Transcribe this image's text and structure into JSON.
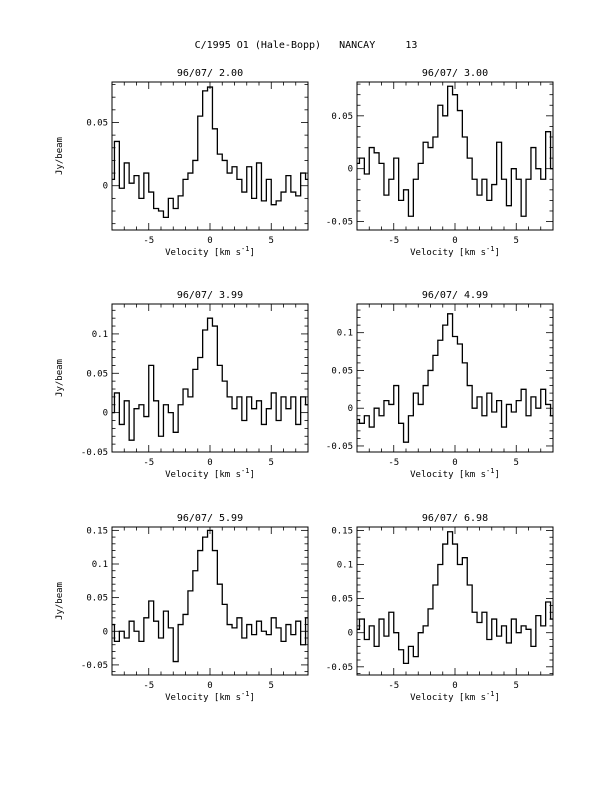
{
  "title": "C/1995 O1 (Hale-Bopp)   NANCAY     13",
  "chart_data": [
    {
      "type": "line",
      "title": "96/07/ 2.00",
      "xlabel": "Velocity [km s",
      "xlabel_sup": "-1",
      "xlabel_end": "]",
      "ylabel": "Jy/beam",
      "xlim": [
        -8,
        8
      ],
      "ylim": [
        -0.035,
        0.082
      ],
      "xticks_major": [
        -5,
        0,
        5
      ],
      "yticks_major": [
        0,
        0.05
      ],
      "ytick_labels": [
        "0",
        "0.05"
      ],
      "yticks_minor_step": 0.01,
      "x": [
        -8,
        -7.6,
        -7.2,
        -6.8,
        -6.4,
        -6,
        -5.6,
        -5.2,
        -4.8,
        -4.4,
        -4,
        -3.6,
        -3.2,
        -2.8,
        -2.4,
        -2,
        -1.6,
        -1.2,
        -0.8,
        -0.4,
        0,
        0.4,
        0.8,
        1.2,
        1.6,
        2,
        2.4,
        2.8,
        3.2,
        3.6,
        4,
        4.4,
        4.8,
        5.2,
        5.6,
        6,
        6.4,
        6.8,
        7.2,
        7.6,
        8
      ],
      "y": [
        0.005,
        0.035,
        -0.002,
        0.018,
        0.002,
        0.008,
        -0.01,
        0.01,
        -0.005,
        -0.018,
        -0.02,
        -0.025,
        -0.01,
        -0.018,
        -0.008,
        0.005,
        0.01,
        0.02,
        0.055,
        0.075,
        0.078,
        0.045,
        0.025,
        0.02,
        0.01,
        0.015,
        0.005,
        -0.005,
        0.015,
        -0.01,
        0.018,
        -0.012,
        0.005,
        -0.015,
        -0.012,
        -0.005,
        0.008,
        -0.005,
        -0.008,
        0.01,
        0.005
      ]
    },
    {
      "type": "line",
      "title": "96/07/ 3.00",
      "xlabel": "Velocity [km s",
      "xlabel_sup": "-1",
      "xlabel_end": "]",
      "ylabel": "",
      "xlim": [
        -8,
        8
      ],
      "ylim": [
        -0.058,
        0.082
      ],
      "xticks_major": [
        -5,
        0,
        5
      ],
      "yticks_major": [
        -0.05,
        0,
        0.05
      ],
      "ytick_labels": [
        "-0.05",
        "0",
        "0.05"
      ],
      "yticks_minor_step": 0.01,
      "x": [
        -8,
        -7.6,
        -7.2,
        -6.8,
        -6.4,
        -6,
        -5.6,
        -5.2,
        -4.8,
        -4.4,
        -4,
        -3.6,
        -3.2,
        -2.8,
        -2.4,
        -2,
        -1.6,
        -1.2,
        -0.8,
        -0.4,
        0,
        0.4,
        0.8,
        1.2,
        1.6,
        2,
        2.4,
        2.8,
        3.2,
        3.6,
        4,
        4.4,
        4.8,
        5.2,
        5.6,
        6,
        6.4,
        6.8,
        7.2,
        7.6,
        8
      ],
      "y": [
        0.005,
        0.01,
        -0.005,
        0.02,
        0.015,
        0.005,
        -0.025,
        -0.01,
        0.01,
        -0.03,
        -0.02,
        -0.045,
        -0.01,
        0.005,
        0.025,
        0.02,
        0.03,
        0.06,
        0.05,
        0.078,
        0.07,
        0.055,
        0.03,
        0.01,
        -0.01,
        -0.025,
        -0.01,
        -0.03,
        -0.015,
        0.025,
        -0.01,
        -0.035,
        0.0,
        -0.01,
        -0.045,
        -0.01,
        0.02,
        0.0,
        -0.01,
        0.035,
        0.0
      ]
    },
    {
      "type": "line",
      "title": "96/07/ 3.99",
      "xlabel": "Velocity [km s",
      "xlabel_sup": "-1",
      "xlabel_end": "]",
      "ylabel": "Jy/beam",
      "xlim": [
        -8,
        8
      ],
      "ylim": [
        -0.05,
        0.138
      ],
      "xticks_major": [
        -5,
        0,
        5
      ],
      "yticks_major": [
        -0.05,
        0,
        0.05,
        0.1
      ],
      "ytick_labels": [
        "-0.05",
        "0",
        "0.05",
        "0.1"
      ],
      "yticks_minor_step": 0.01,
      "x": [
        -8,
        -7.6,
        -7.2,
        -6.8,
        -6.4,
        -6,
        -5.6,
        -5.2,
        -4.8,
        -4.4,
        -4,
        -3.6,
        -3.2,
        -2.8,
        -2.4,
        -2,
        -1.6,
        -1.2,
        -0.8,
        -0.4,
        0,
        0.4,
        0.8,
        1.2,
        1.6,
        2,
        2.4,
        2.8,
        3.2,
        3.6,
        4,
        4.4,
        4.8,
        5.2,
        5.6,
        6,
        6.4,
        6.8,
        7.2,
        7.6,
        8
      ],
      "y": [
        0.0,
        0.025,
        -0.015,
        0.015,
        -0.035,
        0.005,
        0.01,
        -0.005,
        0.06,
        0.015,
        -0.03,
        0.01,
        0.0,
        -0.025,
        0.01,
        0.03,
        0.02,
        0.055,
        0.07,
        0.105,
        0.12,
        0.11,
        0.06,
        0.04,
        0.02,
        0.005,
        0.02,
        -0.01,
        0.02,
        0.005,
        0.015,
        -0.015,
        0.005,
        0.025,
        -0.01,
        0.02,
        0.005,
        0.02,
        -0.015,
        0.02,
        0.01
      ]
    },
    {
      "type": "line",
      "title": "96/07/ 4.99",
      "xlabel": "Velocity [km s",
      "xlabel_sup": "-1",
      "xlabel_end": "]",
      "ylabel": "",
      "xlim": [
        -8,
        8
      ],
      "ylim": [
        -0.058,
        0.138
      ],
      "xticks_major": [
        -5,
        0,
        5
      ],
      "yticks_major": [
        -0.05,
        0,
        0.05,
        0.1
      ],
      "ytick_labels": [
        "-0.05",
        "0",
        "0.05",
        "0.1"
      ],
      "yticks_minor_step": 0.01,
      "x": [
        -8,
        -7.6,
        -7.2,
        -6.8,
        -6.4,
        -6,
        -5.6,
        -5.2,
        -4.8,
        -4.4,
        -4,
        -3.6,
        -3.2,
        -2.8,
        -2.4,
        -2,
        -1.6,
        -1.2,
        -0.8,
        -0.4,
        0,
        0.4,
        0.8,
        1.2,
        1.6,
        2,
        2.4,
        2.8,
        3.2,
        3.6,
        4,
        4.4,
        4.8,
        5.2,
        5.6,
        6,
        6.4,
        6.8,
        7.2,
        7.6,
        8
      ],
      "y": [
        -0.015,
        -0.02,
        -0.01,
        -0.025,
        0.0,
        -0.01,
        0.01,
        0.005,
        0.03,
        -0.02,
        -0.045,
        -0.01,
        0.02,
        0.005,
        0.03,
        0.05,
        0.07,
        0.09,
        0.11,
        0.125,
        0.095,
        0.085,
        0.06,
        0.03,
        0.0,
        0.015,
        -0.01,
        0.02,
        -0.005,
        0.01,
        -0.025,
        0.005,
        -0.005,
        0.01,
        0.025,
        -0.01,
        0.015,
        0.0,
        0.025,
        0.005,
        -0.01
      ]
    },
    {
      "type": "line",
      "title": "96/07/ 5.99",
      "xlabel": "Velocity [km s",
      "xlabel_sup": "-1",
      "xlabel_end": "]",
      "ylabel": "Jy/beam",
      "xlim": [
        -8,
        8
      ],
      "ylim": [
        -0.065,
        0.155
      ],
      "xticks_major": [
        -5,
        0,
        5
      ],
      "yticks_major": [
        -0.05,
        0,
        0.05,
        0.1,
        0.15
      ],
      "ytick_labels": [
        "-0.05",
        "0",
        "0.05",
        "0.1",
        "0.15"
      ],
      "yticks_minor_step": 0.01,
      "x": [
        -8,
        -7.6,
        -7.2,
        -6.8,
        -6.4,
        -6,
        -5.6,
        -5.2,
        -4.8,
        -4.4,
        -4,
        -3.6,
        -3.2,
        -2.8,
        -2.4,
        -2,
        -1.6,
        -1.2,
        -0.8,
        -0.4,
        0,
        0.4,
        0.8,
        1.2,
        1.6,
        2,
        2.4,
        2.8,
        3.2,
        3.6,
        4,
        4.4,
        4.8,
        5.2,
        5.6,
        6,
        6.4,
        6.8,
        7.2,
        7.6,
        8
      ],
      "y": [
        0.01,
        -0.015,
        0.0,
        -0.01,
        0.015,
        0.0,
        -0.015,
        0.02,
        0.045,
        0.015,
        -0.01,
        0.03,
        0.005,
        -0.045,
        0.01,
        0.025,
        0.06,
        0.09,
        0.12,
        0.14,
        0.15,
        0.12,
        0.07,
        0.04,
        0.01,
        0.005,
        0.02,
        -0.01,
        0.01,
        -0.005,
        0.015,
        0.0,
        -0.005,
        0.02,
        0.005,
        -0.015,
        0.01,
        -0.005,
        0.015,
        -0.02,
        0.02
      ]
    },
    {
      "type": "line",
      "title": "96/07/ 6.98",
      "xlabel": "Velocity [km s",
      "xlabel_sup": "-1",
      "xlabel_end": "]",
      "ylabel": "",
      "xlim": [
        -8,
        8
      ],
      "ylim": [
        -0.062,
        0.155
      ],
      "xticks_major": [
        -5,
        0,
        5
      ],
      "yticks_major": [
        -0.05,
        0,
        0.05,
        0.1,
        0.15
      ],
      "ytick_labels": [
        "-0.05",
        "0",
        "0.05",
        "0.1",
        "0.15"
      ],
      "yticks_minor_step": 0.01,
      "x": [
        -8,
        -7.6,
        -7.2,
        -6.8,
        -6.4,
        -6,
        -5.6,
        -5.2,
        -4.8,
        -4.4,
        -4,
        -3.6,
        -3.2,
        -2.8,
        -2.4,
        -2,
        -1.6,
        -1.2,
        -0.8,
        -0.4,
        0,
        0.4,
        0.8,
        1.2,
        1.6,
        2,
        2.4,
        2.8,
        3.2,
        3.6,
        4,
        4.4,
        4.8,
        5.2,
        5.6,
        6,
        6.4,
        6.8,
        7.2,
        7.6,
        8
      ],
      "y": [
        0.005,
        0.02,
        -0.01,
        0.01,
        -0.02,
        0.02,
        -0.005,
        0.03,
        0.0,
        -0.025,
        -0.045,
        -0.02,
        -0.035,
        0.0,
        0.01,
        0.035,
        0.07,
        0.1,
        0.13,
        0.148,
        0.13,
        0.1,
        0.11,
        0.07,
        0.03,
        0.015,
        0.03,
        -0.01,
        0.02,
        -0.005,
        0.01,
        -0.015,
        0.02,
        0.0,
        0.01,
        0.005,
        -0.02,
        0.025,
        0.01,
        0.045,
        0.02
      ]
    }
  ]
}
